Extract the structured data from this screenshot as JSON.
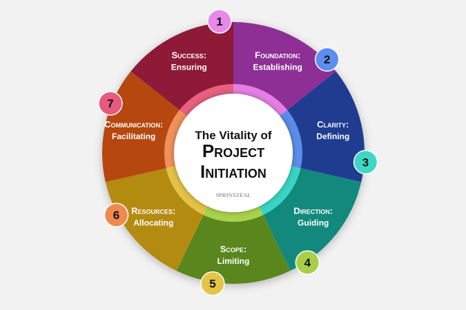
{
  "center": {
    "line1": "The Vitality of",
    "line2": "Project",
    "line3": "Initiation",
    "logo": "SPRINTZEAL"
  },
  "segments": [
    {
      "num": "1",
      "title": "Foundation:",
      "sub": "Establishing",
      "color": "#8e2f96",
      "ring": "#e57ee3",
      "badge": "#e889ea"
    },
    {
      "num": "2",
      "title": "Clarity:",
      "sub": "Defining",
      "color": "#1f3c91",
      "ring": "#5b8de8",
      "badge": "#5a8ff0"
    },
    {
      "num": "3",
      "title": "Direction:",
      "sub": "Guiding",
      "color": "#12897c",
      "ring": "#39d5c4",
      "badge": "#3fd6c5"
    },
    {
      "num": "4",
      "title": "Scope:",
      "sub": "Limiting",
      "color": "#5a861e",
      "ring": "#a8d14c",
      "badge": "#a9cf49"
    },
    {
      "num": "5",
      "title": "Resources:",
      "sub": "Allocating",
      "color": "#b38b10",
      "ring": "#e3c248",
      "badge": "#e5c446"
    },
    {
      "num": "6",
      "title": "Communication:",
      "sub": "Facilitating",
      "color": "#b5470f",
      "ring": "#f0915a",
      "badge": "#ef8a4f"
    },
    {
      "num": "7",
      "title": "Success:",
      "sub": "Ensuring",
      "color": "#8e1a38",
      "ring": "#e8607f",
      "badge": "#e65a7c"
    }
  ]
}
